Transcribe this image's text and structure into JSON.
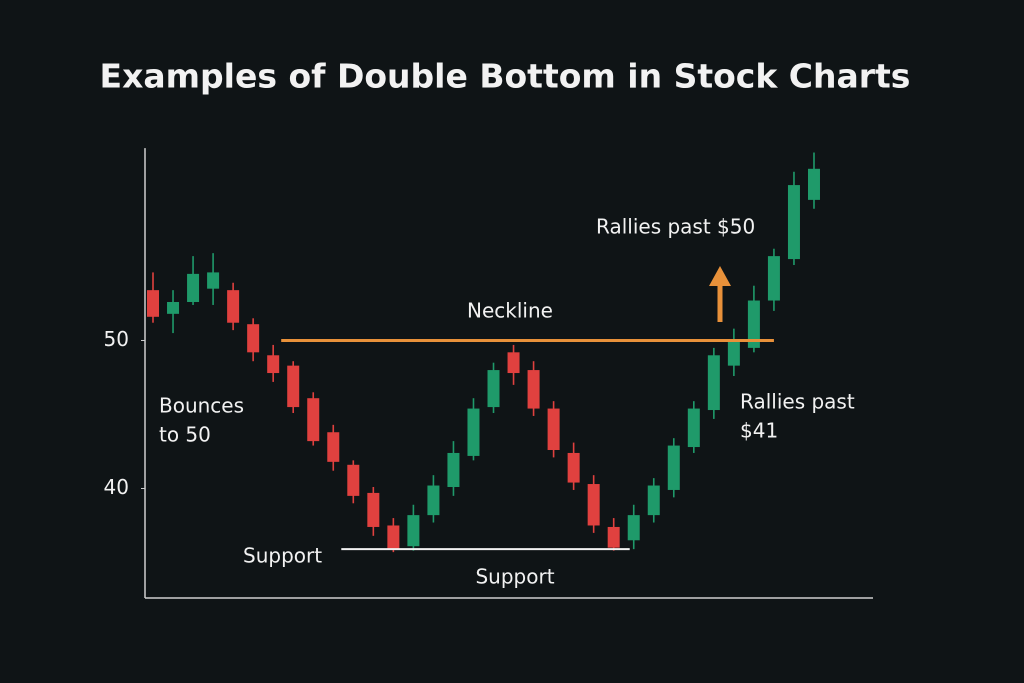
{
  "chart_data": {
    "type": "candlestick",
    "title": "Examples of Double Bottom in Stock Charts",
    "categories": [
      null,
      null,
      null,
      null,
      null,
      null,
      null,
      null,
      null,
      null,
      null,
      null,
      null,
      null,
      null,
      null,
      null,
      null,
      null,
      null,
      null,
      null,
      null,
      null,
      null,
      null,
      null,
      null,
      null,
      null,
      null,
      null,
      null,
      null
    ],
    "open": [
      53.4,
      51.8,
      52.6,
      53.5,
      53.4,
      51.1,
      49.0,
      48.3,
      46.1,
      43.8,
      41.6,
      39.7,
      37.5,
      36.1,
      38.2,
      40.1,
      42.2,
      45.5,
      49.2,
      48.0,
      45.4,
      42.4,
      40.3,
      37.4,
      36.5,
      38.2,
      39.9,
      42.8,
      45.3,
      48.3,
      49.5,
      52.7,
      55.5,
      59.5
    ],
    "high": [
      54.6,
      53.4,
      55.7,
      55.9,
      53.9,
      51.5,
      49.7,
      48.6,
      46.5,
      44.3,
      41.9,
      40.1,
      38.0,
      38.9,
      40.9,
      43.2,
      46.1,
      48.5,
      49.7,
      48.6,
      45.9,
      43.1,
      40.9,
      38.0,
      38.9,
      40.7,
      43.4,
      45.9,
      49.5,
      50.8,
      53.7,
      56.2,
      61.4,
      62.7
    ],
    "low": [
      51.2,
      50.5,
      52.4,
      52.4,
      50.7,
      48.6,
      47.2,
      45.1,
      42.9,
      41.2,
      39.0,
      36.8,
      35.7,
      35.8,
      37.7,
      39.5,
      41.9,
      45.1,
      47.0,
      44.9,
      42.1,
      39.9,
      37.0,
      35.8,
      35.9,
      37.7,
      39.4,
      42.4,
      44.7,
      47.6,
      49.2,
      52.0,
      55.1,
      58.9
    ],
    "close": [
      51.6,
      52.6,
      54.5,
      54.6,
      51.2,
      49.2,
      47.8,
      45.5,
      43.2,
      41.8,
      39.5,
      37.4,
      35.9,
      38.2,
      40.2,
      42.4,
      45.4,
      48.0,
      47.8,
      45.4,
      42.6,
      40.4,
      37.5,
      36.0,
      38.2,
      40.2,
      42.9,
      45.4,
      49.0,
      50.1,
      52.7,
      55.7,
      60.5,
      61.6
    ],
    "up_color": "#1f9a6a",
    "down_color": "#e0413f",
    "ylim": [
      32.6,
      63
    ],
    "yticks": [
      40,
      50
    ],
    "neckline": 50,
    "neckline_color": "#e8913a",
    "support": 35.9,
    "support_color": "#f2f2f2",
    "annotations": {
      "neckline": [
        "Neckline"
      ],
      "support_left": [
        "Support"
      ],
      "support_bottom": [
        "Support"
      ],
      "bounce": [
        "Bounces",
        "to 50"
      ],
      "rally_top": [
        "Rallies past $50"
      ],
      "rally_right": [
        "Rallies past",
        "$41"
      ]
    }
  }
}
